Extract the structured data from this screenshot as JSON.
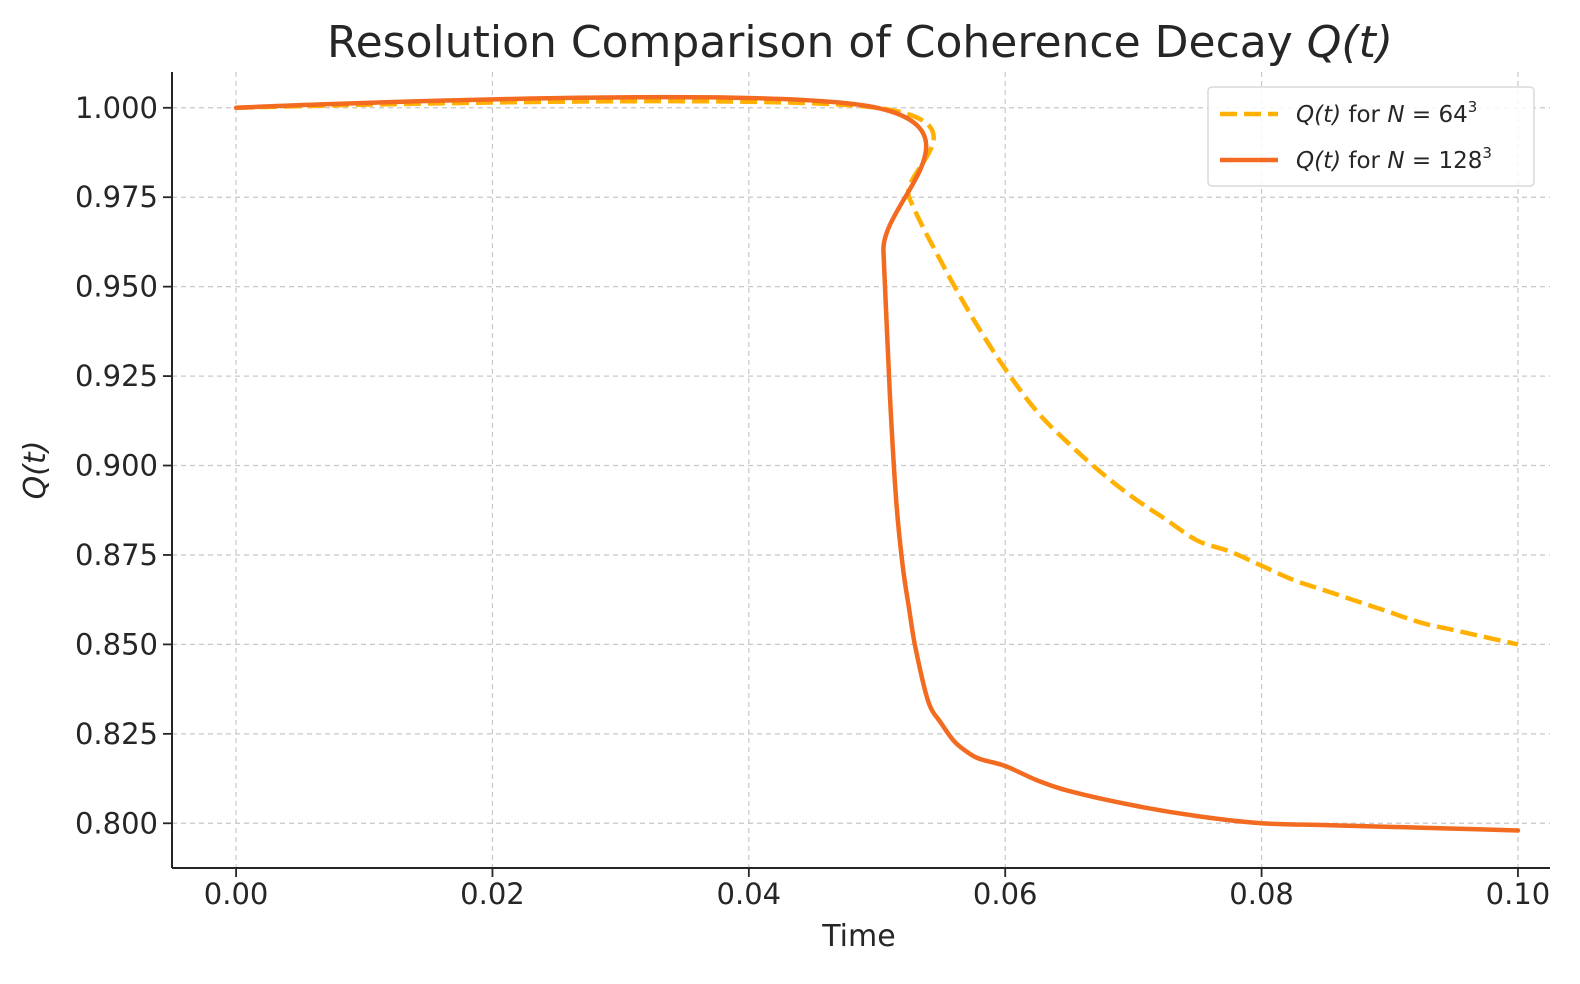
{
  "chart_data": {
    "type": "line",
    "title": "Resolution Comparison of Coherence Decay Q(t)",
    "xlabel": "Time",
    "ylabel": "Q(t)",
    "xlim": [
      -0.005,
      0.1025
    ],
    "ylim": [
      0.7875,
      1.01
    ],
    "xticks": [
      "0.00",
      "0.02",
      "0.04",
      "0.06",
      "0.08",
      "0.10"
    ],
    "xtick_values": [
      0.0,
      0.02,
      0.04,
      0.06,
      0.08,
      0.1
    ],
    "yticks": [
      "0.800",
      "0.825",
      "0.850",
      "0.875",
      "0.900",
      "0.925",
      "0.950",
      "0.975",
      "1.000"
    ],
    "ytick_values": [
      0.8,
      0.825,
      0.85,
      0.875,
      0.9,
      0.925,
      0.95,
      0.975,
      1.0
    ],
    "grid": true,
    "legend_position": "top-right",
    "series": [
      {
        "name": "Q(t) for N = 64³",
        "color": "#ffb000",
        "style": "dashed",
        "x": [
          0.0,
          0.05,
          0.0525,
          0.055,
          0.0575,
          0.06,
          0.0625,
          0.065,
          0.0675,
          0.07,
          0.0725,
          0.075,
          0.0775,
          0.08,
          0.0825,
          0.085,
          0.0875,
          0.09,
          0.0925,
          0.095,
          0.0975,
          0.1
        ],
        "y": [
          1.0,
          1.0,
          0.975,
          0.957,
          0.941,
          0.927,
          0.915,
          0.906,
          0.898,
          0.891,
          0.885,
          0.879,
          0.876,
          0.872,
          0.868,
          0.865,
          0.862,
          0.859,
          0.856,
          0.854,
          0.852,
          0.85
        ]
      },
      {
        "name": "Q(t) for N = 128³",
        "color": "#f26b21",
        "style": "solid",
        "x": [
          0.0,
          0.05,
          0.0505,
          0.051,
          0.0515,
          0.052,
          0.0525,
          0.053,
          0.054,
          0.055,
          0.056,
          0.057,
          0.058,
          0.06,
          0.0625,
          0.065,
          0.07,
          0.075,
          0.08,
          0.085,
          0.09,
          0.095,
          0.1
        ],
        "y": [
          1.0,
          1.0,
          0.96,
          0.92,
          0.89,
          0.872,
          0.86,
          0.849,
          0.834,
          0.828,
          0.823,
          0.82,
          0.818,
          0.816,
          0.812,
          0.809,
          0.805,
          0.802,
          0.8,
          0.7995,
          0.799,
          0.7985,
          0.798
        ]
      }
    ]
  }
}
